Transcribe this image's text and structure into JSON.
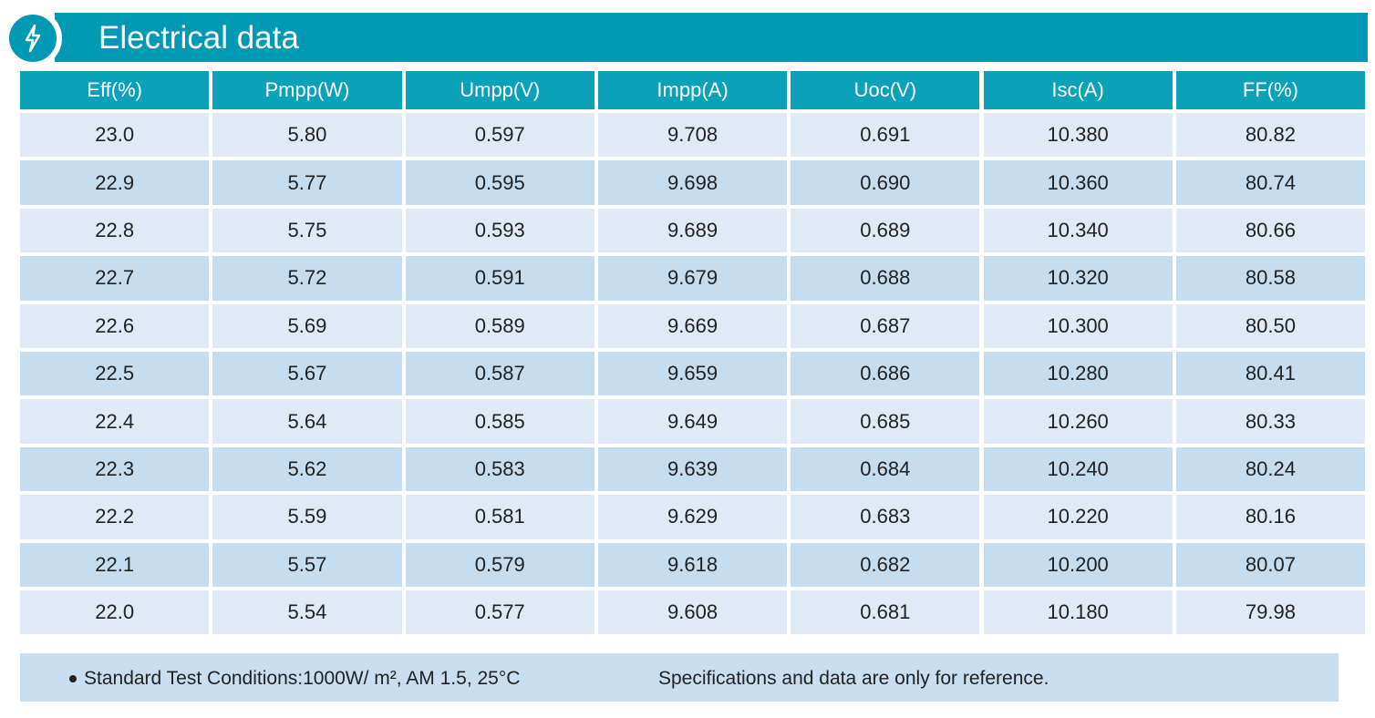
{
  "header": {
    "title": "Electrical data"
  },
  "table": {
    "columns": [
      "Eff(%)",
      "Pmpp(W)",
      "Umpp(V)",
      "Impp(A)",
      "Uoc(V)",
      "Isc(A)",
      "FF(%)"
    ],
    "rows": [
      [
        "23.0",
        "5.80",
        "0.597",
        "9.708",
        "0.691",
        "10.380",
        "80.82"
      ],
      [
        "22.9",
        "5.77",
        "0.595",
        "9.698",
        "0.690",
        "10.360",
        "80.74"
      ],
      [
        "22.8",
        "5.75",
        "0.593",
        "9.689",
        "0.689",
        "10.340",
        "80.66"
      ],
      [
        "22.7",
        "5.72",
        "0.591",
        "9.679",
        "0.688",
        "10.320",
        "80.58"
      ],
      [
        "22.6",
        "5.69",
        "0.589",
        "9.669",
        "0.687",
        "10.300",
        "80.50"
      ],
      [
        "22.5",
        "5.67",
        "0.587",
        "9.659",
        "0.686",
        "10.280",
        "80.41"
      ],
      [
        "22.4",
        "5.64",
        "0.585",
        "9.649",
        "0.685",
        "10.260",
        "80.33"
      ],
      [
        "22.3",
        "5.62",
        "0.583",
        "9.639",
        "0.684",
        "10.240",
        "80.24"
      ],
      [
        "22.2",
        "5.59",
        "0.581",
        "9.629",
        "0.683",
        "10.220",
        "80.16"
      ],
      [
        "22.1",
        "5.57",
        "0.579",
        "9.618",
        "0.682",
        "10.200",
        "80.07"
      ],
      [
        "22.0",
        "5.54",
        "0.577",
        "9.608",
        "0.681",
        "10.180",
        "79.98"
      ]
    ]
  },
  "footer": {
    "conditions": "Standard Test Conditions:1000W/ m², AM 1.5, 25°C",
    "disclaimer": "Specifications and data are only for reference."
  }
}
